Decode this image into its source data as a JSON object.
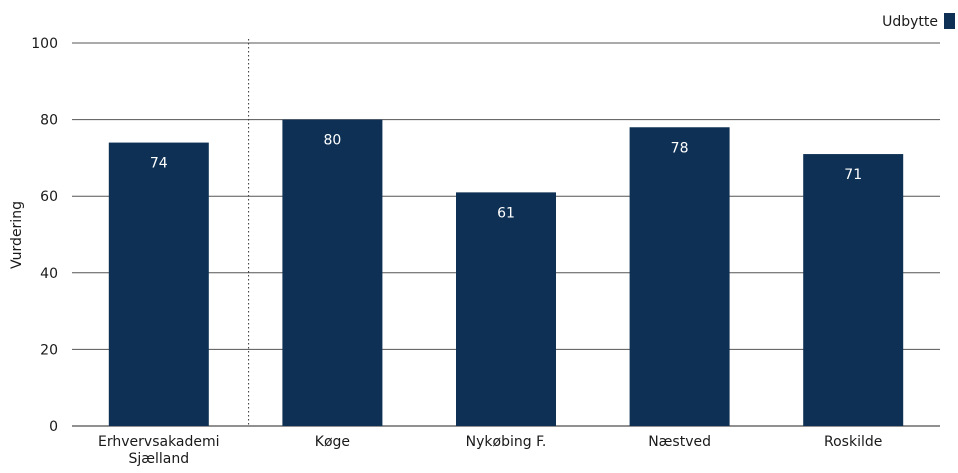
{
  "chart_data": {
    "type": "bar",
    "title": "",
    "xlabel": "",
    "ylabel": "Vurdering",
    "categories": [
      "Erhvervsakademi Sjælland",
      "Køge",
      "Nykøbing F.",
      "Næstved",
      "Roskilde"
    ],
    "series": [
      {
        "name": "Udbytte",
        "values": [
          74,
          80,
          61,
          78,
          71
        ],
        "color": "#0d3054"
      }
    ],
    "ylim": [
      0,
      100
    ],
    "yticks": [
      0,
      20,
      40,
      60,
      80,
      100
    ],
    "grid": true,
    "legend": "top-right",
    "separator_after_category": 0,
    "data_labels": true,
    "data_label_color": "#ffffff"
  }
}
